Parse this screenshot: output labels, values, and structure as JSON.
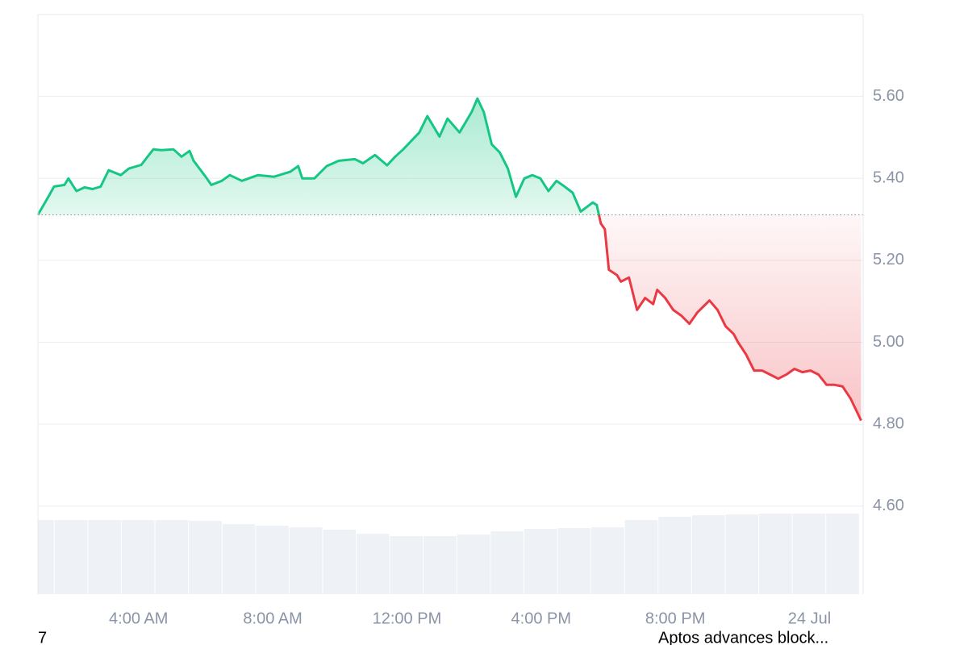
{
  "chart_data": {
    "type": "line",
    "x": [
      1.0,
      1.31,
      1.48,
      1.79,
      1.91,
      2.15,
      2.39,
      2.63,
      2.87,
      3.11,
      3.47,
      3.71,
      4.08,
      4.44,
      4.68,
      5.04,
      5.28,
      5.52,
      5.64,
      6.0,
      6.17,
      6.48,
      6.72,
      7.08,
      7.56,
      8.04,
      8.52,
      8.76,
      8.88,
      9.24,
      9.61,
      9.97,
      10.45,
      10.69,
      11.05,
      11.41,
      11.65,
      11.89,
      12.37,
      12.61,
      12.97,
      13.21,
      13.57,
      13.93,
      14.1,
      14.29,
      14.53,
      14.77,
      15.01,
      15.25,
      15.5,
      15.74,
      15.98,
      16.22,
      16.46,
      16.7,
      16.94,
      17.18,
      17.54,
      17.66,
      17.78,
      17.9,
      18.02,
      18.26,
      18.38,
      18.62,
      18.86,
      19.1,
      19.34,
      19.46,
      19.7,
      19.94,
      20.18,
      20.42,
      20.66,
      21.02,
      21.26,
      21.5,
      21.74,
      21.87,
      22.11,
      22.35,
      22.59,
      22.83,
      23.07,
      23.31,
      23.55,
      23.79,
      24.03,
      24.27,
      24.51,
      24.75,
      24.99,
      25.23,
      25.54
    ],
    "values": [
      5.311,
      5.355,
      5.38,
      5.384,
      5.4,
      5.369,
      5.378,
      5.374,
      5.38,
      5.42,
      5.408,
      5.424,
      5.433,
      5.471,
      5.469,
      5.471,
      5.453,
      5.467,
      5.443,
      5.404,
      5.384,
      5.394,
      5.408,
      5.394,
      5.408,
      5.404,
      5.416,
      5.43,
      5.4,
      5.4,
      5.43,
      5.443,
      5.447,
      5.437,
      5.457,
      5.432,
      5.453,
      5.471,
      5.512,
      5.552,
      5.502,
      5.546,
      5.512,
      5.562,
      5.595,
      5.562,
      5.483,
      5.463,
      5.424,
      5.355,
      5.4,
      5.408,
      5.4,
      5.369,
      5.394,
      5.38,
      5.365,
      5.319,
      5.341,
      5.335,
      5.29,
      5.276,
      5.177,
      5.164,
      5.148,
      5.158,
      5.079,
      5.108,
      5.093,
      5.128,
      5.108,
      5.079,
      5.065,
      5.045,
      5.073,
      5.102,
      5.079,
      5.039,
      5.02,
      5.0,
      4.97,
      4.931,
      4.931,
      4.921,
      4.911,
      4.921,
      4.935,
      4.927,
      4.931,
      4.921,
      4.896,
      4.896,
      4.892,
      4.862,
      4.809
    ],
    "baseline": 5.311,
    "colors": {
      "up": "#16c784",
      "down": "#ea3943",
      "volume": "#eef1f5"
    },
    "xlim": [
      1.0,
      25.6
    ],
    "ylim": [
      4.385,
      5.8
    ],
    "xticks": [
      {
        "value": 4,
        "label": "4:00 AM"
      },
      {
        "value": 8,
        "label": "8:00 AM"
      },
      {
        "value": 12,
        "label": "12:00 PM"
      },
      {
        "value": 16,
        "label": "4:00 PM"
      },
      {
        "value": 20,
        "label": "8:00 PM"
      },
      {
        "value": 24,
        "label": "24 Jul"
      }
    ],
    "yticks": [
      {
        "value": 4.6,
        "label": "4.60"
      },
      {
        "value": 4.8,
        "label": "4.80"
      },
      {
        "value": 5.0,
        "label": "5.00"
      },
      {
        "value": 5.2,
        "label": "5.20"
      },
      {
        "value": 5.4,
        "label": "5.40"
      },
      {
        "value": 5.6,
        "label": "5.60"
      }
    ],
    "grid": true,
    "volume": {
      "x": [
        1,
        2,
        3,
        4,
        5,
        6,
        7,
        8,
        9,
        10,
        11,
        12,
        13,
        14,
        15,
        16,
        17,
        18,
        19,
        20,
        21,
        22,
        23,
        24,
        25
      ],
      "values": [
        92,
        92,
        92,
        92,
        92,
        91,
        87,
        85,
        83,
        80,
        75,
        72,
        72,
        74,
        78,
        81,
        82,
        83,
        92,
        96,
        98,
        99,
        100,
        100,
        100
      ],
      "ylim": [
        0,
        100
      ]
    }
  },
  "footer": {
    "left": "7",
    "right": "Aptos advances block..."
  }
}
